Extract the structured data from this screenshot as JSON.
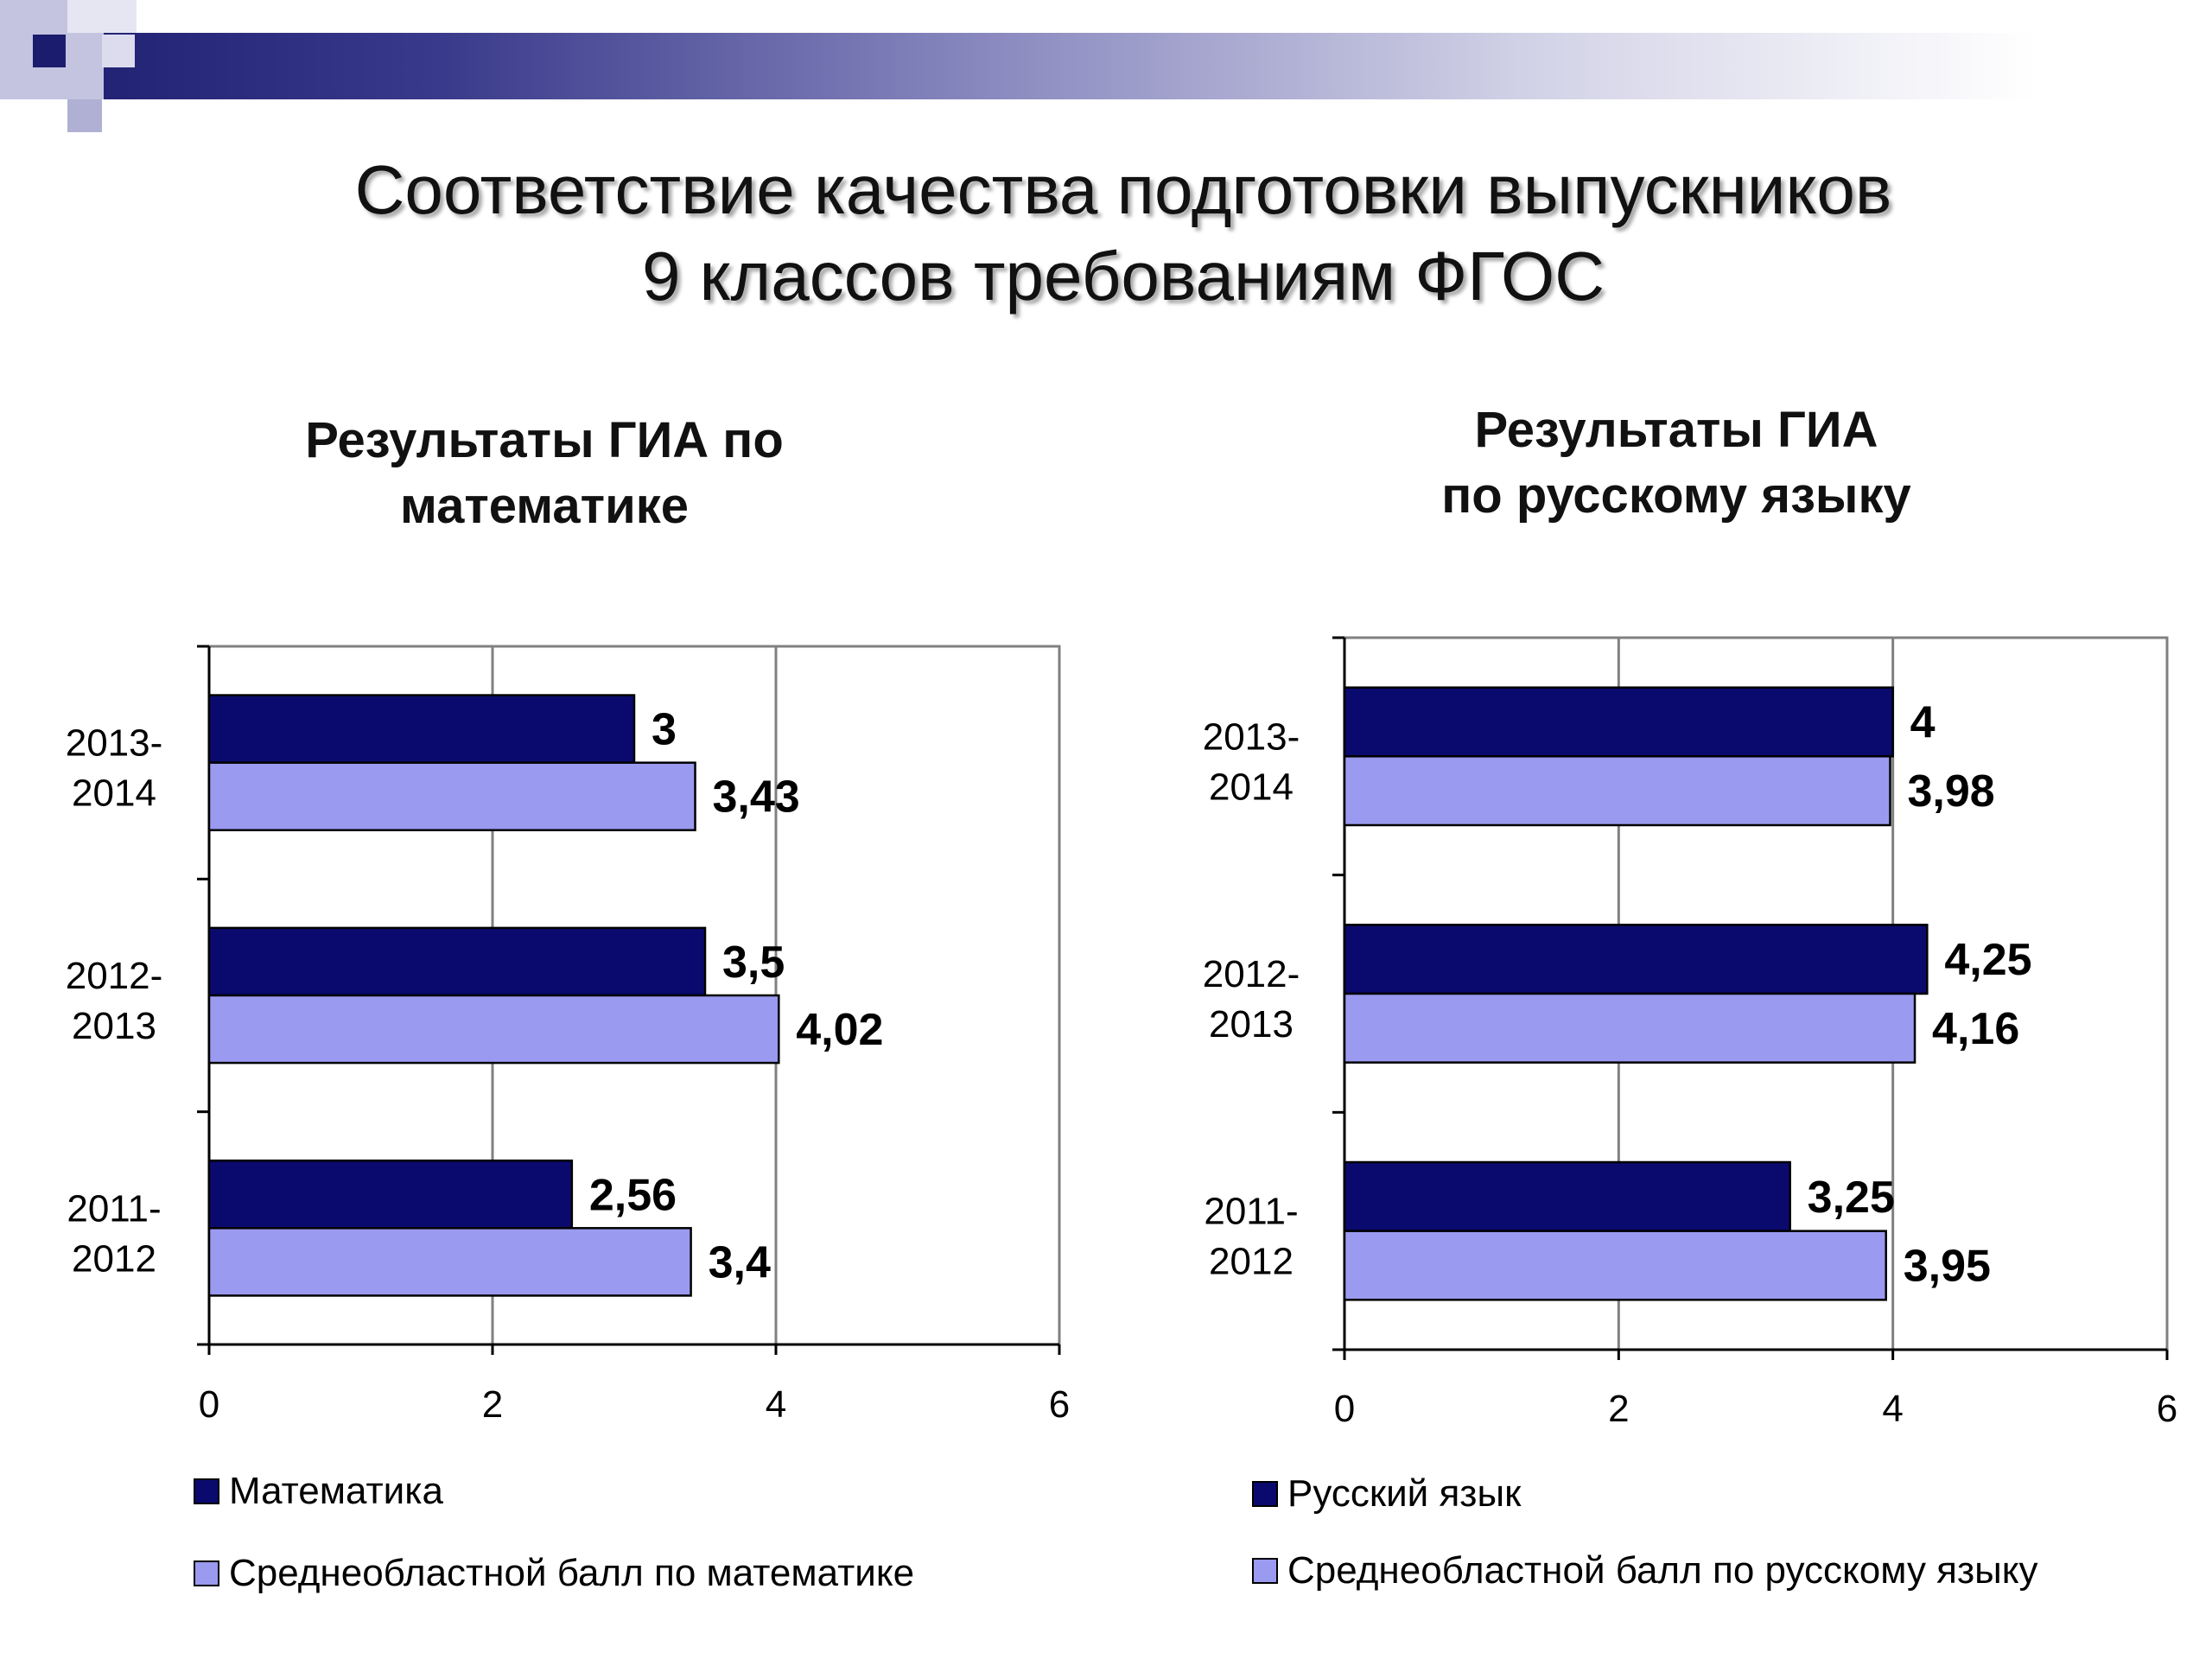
{
  "slide": {
    "title_line1": "Соответствие качества подготовки выпускников",
    "title_line2": "9 классов требованиям ФГОС"
  },
  "colors": {
    "dark_series": "#0a0a6e",
    "light_series": "#9a9af0",
    "banner": "#1c1c6e"
  },
  "chart_data": [
    {
      "type": "bar",
      "orientation": "horizontal",
      "title_line1": "Результаты ГИА по",
      "title_line2": "математике",
      "categories": [
        "2013-2014",
        "2012-2013",
        "2011-2012"
      ],
      "category_lines": [
        [
          "2013-",
          "2014"
        ],
        [
          "2012-",
          "2013"
        ],
        [
          "2011-",
          "2012"
        ]
      ],
      "series": [
        {
          "name": "Математика",
          "values": [
            3,
            3.5,
            2.56
          ],
          "labels": [
            "3",
            "3,5",
            "2,56"
          ]
        },
        {
          "name": "Среднеобластной балл по математике",
          "values": [
            3.43,
            4.02,
            3.4
          ],
          "labels": [
            "3,43",
            "4,02",
            "3,4"
          ]
        }
      ],
      "xlim": [
        0,
        6
      ],
      "xticks": [
        "0",
        "2",
        "4",
        "6"
      ],
      "grid": true,
      "legend": "bottom"
    },
    {
      "type": "bar",
      "orientation": "horizontal",
      "title_line1": "Результаты ГИА",
      "title_line2": "по русскому языку",
      "categories": [
        "2013-2014",
        "2012-2013",
        "2011-2012"
      ],
      "category_lines": [
        [
          "2013-",
          "2014"
        ],
        [
          "2012-",
          "2013"
        ],
        [
          "2011-",
          "2012"
        ]
      ],
      "series": [
        {
          "name": "Русский язык",
          "values": [
            4,
            4.25,
            3.25
          ],
          "labels": [
            "4",
            "4,25",
            "3,25"
          ]
        },
        {
          "name": "Среднеобластной балл по русскому языку",
          "values": [
            3.98,
            4.16,
            3.95
          ],
          "labels": [
            "3,98",
            "4,16",
            "3,95"
          ]
        }
      ],
      "xlim": [
        0,
        6
      ],
      "xticks": [
        "0",
        "2",
        "4",
        "6"
      ],
      "grid": true,
      "legend": "bottom"
    }
  ]
}
